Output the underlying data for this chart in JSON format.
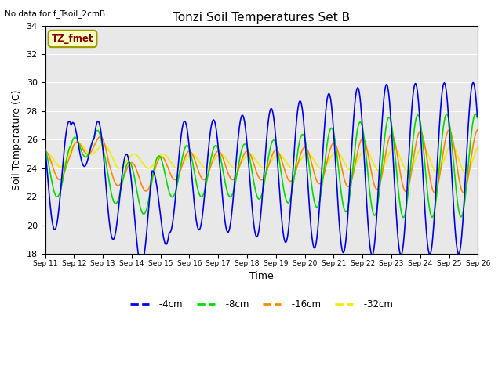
{
  "title": "Tonzi Soil Temperatures Set B",
  "xlabel": "Time",
  "ylabel": "Soil Temperature (C)",
  "no_data_text": "No data for f_Tsoil_2cmB",
  "tz_fmet_label": "TZ_fmet",
  "ylim": [
    18,
    34
  ],
  "yticks": [
    18,
    20,
    22,
    24,
    26,
    28,
    30,
    32,
    34
  ],
  "x_labels": [
    "Sep 11",
    "Sep 12",
    "Sep 13",
    "Sep 14",
    "Sep 15",
    "Sep 16",
    "Sep 17",
    "Sep 18",
    "Sep 19",
    "Sep 20",
    "Sep 21",
    "Sep 22",
    "Sep 23",
    "Sep 24",
    "Sep 25",
    "Sep 26"
  ],
  "colors": {
    "4cm": "#0000EE",
    "8cm": "#00DD00",
    "16cm": "#FF8800",
    "32cm": "#EEEE00"
  },
  "background_color": "#E8E8E8",
  "legend_linestyle": "--"
}
